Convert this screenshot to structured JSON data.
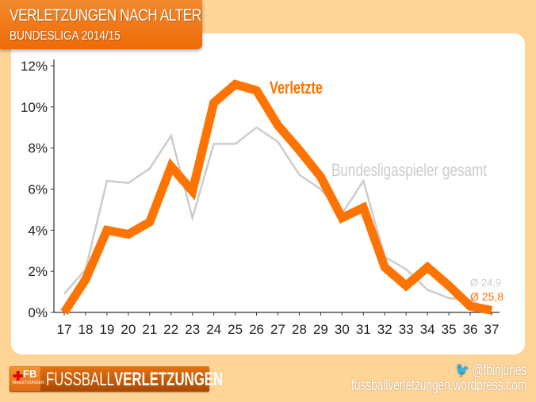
{
  "header": {
    "title": "VERLETZUNGEN NACH ALTER",
    "subtitle": "BUNDESLIGA 2014/15"
  },
  "chart_data": {
    "type": "line",
    "title": "VERLETZUNGEN NACH ALTER",
    "subtitle": "BUNDESLIGA 2014/15",
    "x": [
      17,
      18,
      19,
      20,
      21,
      22,
      23,
      24,
      25,
      26,
      27,
      28,
      29,
      30,
      31,
      32,
      33,
      34,
      35,
      36,
      37
    ],
    "ylim": [
      0,
      12
    ],
    "yticks": [
      "0%",
      "2%",
      "4%",
      "6%",
      "8%",
      "10%",
      "12%"
    ],
    "ytick_values": [
      0,
      2,
      4,
      6,
      8,
      10,
      12
    ],
    "grid": false,
    "series": [
      {
        "name": "Bundesligaspieler gesamt",
        "color": "#CCCCCC",
        "average_label": "Ø 24,9",
        "values": [
          0.9,
          2.1,
          6.4,
          6.3,
          7.0,
          8.6,
          4.6,
          8.2,
          8.2,
          9.0,
          8.3,
          6.7,
          6.0,
          4.8,
          6.4,
          2.7,
          2.1,
          1.1,
          0.7,
          0.6,
          0.1
        ]
      },
      {
        "name": "Verletzte",
        "color": "#FF7300",
        "average_label": "Ø 25,8",
        "values": [
          0.0,
          1.6,
          4.0,
          3.8,
          4.4,
          7.1,
          5.9,
          10.2,
          11.1,
          10.8,
          9.1,
          7.9,
          6.6,
          4.6,
          5.1,
          2.2,
          1.3,
          2.2,
          1.3,
          0.3,
          0.1
        ]
      }
    ]
  },
  "footer": {
    "logo_fb": "FB",
    "logo_sub": "VERLETZUNGEN",
    "logo_text_light": "FUSSBALL",
    "logo_text_bold": "VERLETZUNGEN",
    "twitter_handle": "@fbinjuries",
    "twitter_icon": "twitter-bird-icon",
    "url": "fussballverletzungen.wordpress.com"
  },
  "colors": {
    "background": "#FFD497",
    "accent": "#FF7300",
    "secondary": "#CCCCCC"
  }
}
